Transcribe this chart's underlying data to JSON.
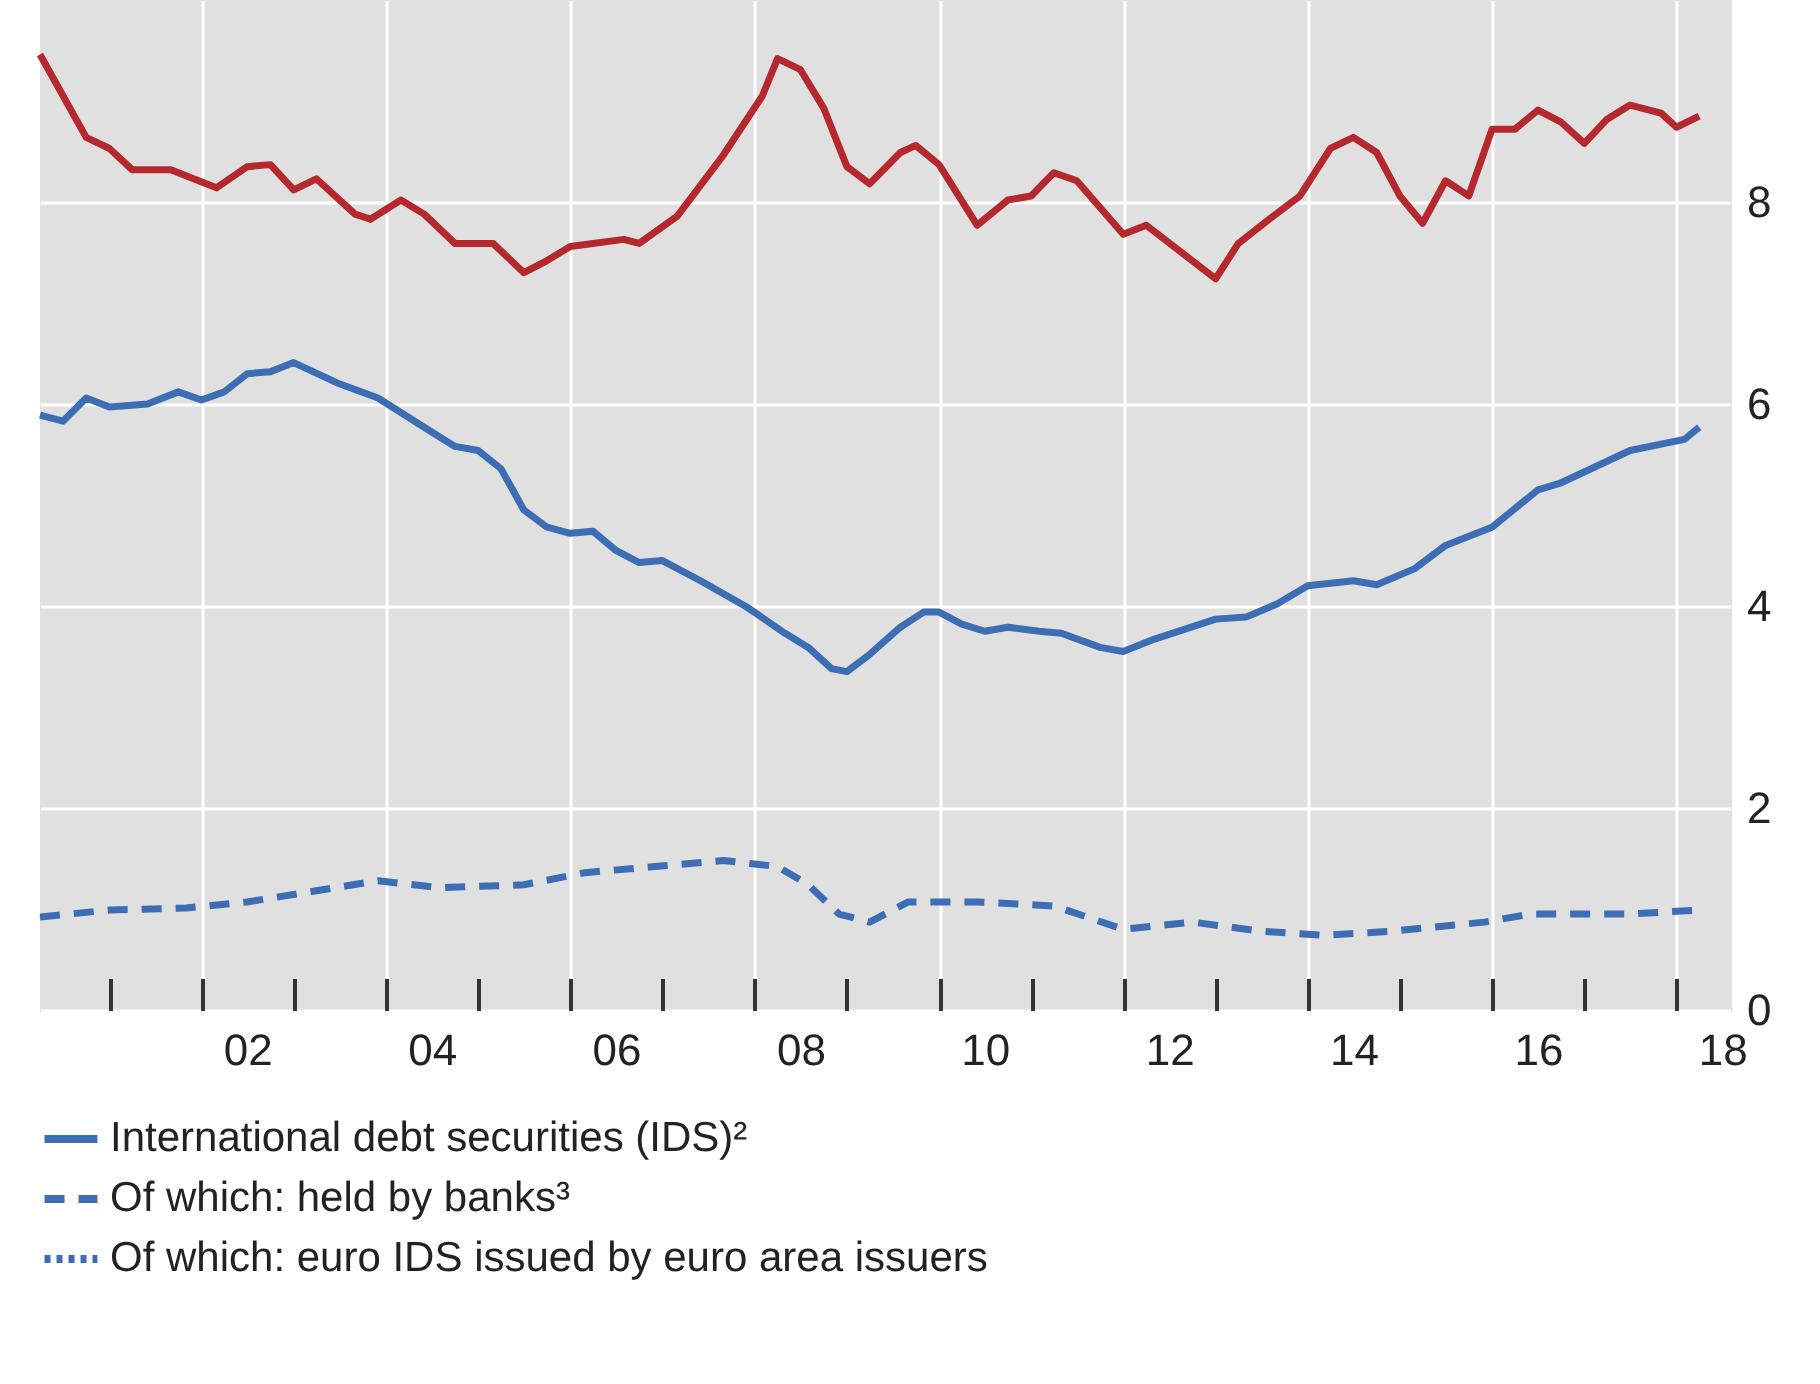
{
  "chart_data": {
    "type": "line",
    "xlim": [
      "2000-04",
      "2018-08"
    ],
    "xticks": [
      {
        "value": "2002-07",
        "label": "02"
      },
      {
        "value": "2004-07",
        "label": "04"
      },
      {
        "value": "2006-07",
        "label": "06"
      },
      {
        "value": "2008-07",
        "label": "08"
      },
      {
        "value": "2010-07",
        "label": "10"
      },
      {
        "value": "2012-07",
        "label": "12"
      },
      {
        "value": "2014-07",
        "label": "14"
      },
      {
        "value": "2016-07",
        "label": "16"
      },
      {
        "value": "2018-07",
        "label": "18"
      },
      {
        "value": "2001-01",
        "label": null
      },
      {
        "value": "2002-01",
        "label": null
      },
      {
        "value": "2003-01",
        "label": null
      },
      {
        "value": "2004-01",
        "label": null
      },
      {
        "value": "2005-01",
        "label": null
      },
      {
        "value": "2006-01",
        "label": null
      },
      {
        "value": "2007-01",
        "label": null
      },
      {
        "value": "2008-01",
        "label": null
      },
      {
        "value": "2009-01",
        "label": null
      },
      {
        "value": "2010-01",
        "label": null
      },
      {
        "value": "2011-01",
        "label": null
      },
      {
        "value": "2012-01",
        "label": null
      },
      {
        "value": "2013-01",
        "label": null
      },
      {
        "value": "2014-01",
        "label": null
      },
      {
        "value": "2015-01",
        "label": null
      },
      {
        "value": "2016-01",
        "label": null
      },
      {
        "value": "2017-01",
        "label": null
      },
      {
        "value": "2018-01",
        "label": null
      }
    ],
    "ylim": [
      0,
      10
    ],
    "yticks": [
      0,
      2,
      4,
      6,
      8
    ],
    "grid": true,
    "legend": "bottom left",
    "series": [
      {
        "color": "#b5282e",
        "line_style": "solid",
        "x": [
          "2000-04",
          "2000-10",
          "2001-01",
          "2001-04",
          "2001-09",
          "2002-03",
          "2002-07",
          "2002-10",
          "2003-01",
          "2003-04",
          "2003-09",
          "2003-11",
          "2004-03",
          "2004-06",
          "2004-10",
          "2005-03",
          "2005-07",
          "2005-10",
          "2006-01",
          "2006-08",
          "2006-10",
          "2007-03",
          "2007-09",
          "2008-02",
          "2008-04",
          "2008-07",
          "2008-10",
          "2009-01",
          "2009-04",
          "2009-08",
          "2009-10",
          "2010-01",
          "2010-06",
          "2010-10",
          "2011-01",
          "2011-04",
          "2011-07",
          "2012-01",
          "2012-04",
          "2013-01",
          "2013-04",
          "2013-08",
          "2013-12",
          "2014-04",
          "2014-07",
          "2014-10",
          "2015-01",
          "2015-04",
          "2015-07",
          "2015-10",
          "2016-01",
          "2016-04",
          "2016-07",
          "2016-10",
          "2017-01",
          "2017-04",
          "2017-07",
          "2017-11",
          "2018-01",
          "2018-04"
        ],
        "values": [
          9.46,
          8.64,
          8.53,
          8.32,
          8.32,
          8.14,
          8.35,
          8.37,
          8.12,
          8.23,
          7.88,
          7.83,
          8.02,
          7.88,
          7.59,
          7.59,
          7.3,
          7.42,
          7.56,
          7.63,
          7.59,
          7.86,
          8.47,
          9.05,
          9.42,
          9.31,
          8.93,
          8.35,
          8.18,
          8.49,
          8.56,
          8.37,
          7.77,
          8.02,
          8.06,
          8.29,
          8.21,
          7.68,
          7.77,
          7.24,
          7.59,
          7.83,
          8.06,
          8.53,
          8.64,
          8.49,
          8.06,
          7.79,
          8.21,
          8.06,
          8.72,
          8.72,
          8.91,
          8.79,
          8.58,
          8.82,
          8.96,
          8.88,
          8.74,
          8.85
        ]
      },
      {
        "name": "International debt securities (IDS)²",
        "color": "#3d6db5",
        "line_style": "solid",
        "x": [
          "2000-04",
          "2000-07",
          "2000-10",
          "2001-01",
          "2001-06",
          "2001-10",
          "2002-01",
          "2002-04",
          "2002-07",
          "2002-10",
          "2003-01",
          "2003-07",
          "2003-12",
          "2004-06",
          "2004-10",
          "2005-01",
          "2005-04",
          "2005-07",
          "2005-10",
          "2006-01",
          "2006-04",
          "2006-07",
          "2006-10",
          "2007-01",
          "2007-06",
          "2007-12",
          "2008-05",
          "2008-08",
          "2008-11",
          "2009-01",
          "2009-04",
          "2009-08",
          "2009-11",
          "2010-01",
          "2010-04",
          "2010-07",
          "2010-10",
          "2011-02",
          "2011-05",
          "2011-10",
          "2012-01",
          "2012-05",
          "2013-01",
          "2013-05",
          "2013-09",
          "2014-01",
          "2014-07",
          "2014-10",
          "2015-03",
          "2015-07",
          "2015-11",
          "2016-01",
          "2016-07",
          "2016-10",
          "2017-07",
          "2018-02",
          "2018-04"
        ],
        "values": [
          5.89,
          5.83,
          6.06,
          5.97,
          6.0,
          6.12,
          6.04,
          6.12,
          6.3,
          6.32,
          6.41,
          6.2,
          6.06,
          5.77,
          5.58,
          5.54,
          5.36,
          4.95,
          4.78,
          4.72,
          4.74,
          4.55,
          4.43,
          4.45,
          4.25,
          3.99,
          3.73,
          3.59,
          3.38,
          3.35,
          3.52,
          3.79,
          3.94,
          3.94,
          3.82,
          3.75,
          3.79,
          3.75,
          3.73,
          3.59,
          3.55,
          3.67,
          3.87,
          3.89,
          4.02,
          4.2,
          4.25,
          4.21,
          4.37,
          4.6,
          4.72,
          4.78,
          5.15,
          5.22,
          5.54,
          5.65,
          5.77
        ]
      },
      {
        "name": "Of which: held by banks³",
        "color": "#3d6db5",
        "line_style": "dashed",
        "x": [
          "2000-04",
          "2001-01",
          "2001-11",
          "2002-07",
          "2003-04",
          "2003-12",
          "2004-08",
          "2005-07",
          "2006-03",
          "2006-12",
          "2007-09",
          "2008-04",
          "2008-08",
          "2008-12",
          "2009-04",
          "2009-09",
          "2010-06",
          "2011-04",
          "2012-01",
          "2012-10",
          "2013-07",
          "2014-03",
          "2014-12",
          "2015-12",
          "2016-06",
          "2017-07",
          "2018-04"
        ],
        "values": [
          0.92,
          0.99,
          1.01,
          1.07,
          1.18,
          1.28,
          1.21,
          1.24,
          1.36,
          1.42,
          1.48,
          1.42,
          1.24,
          0.95,
          0.87,
          1.07,
          1.07,
          1.03,
          0.8,
          0.87,
          0.78,
          0.74,
          0.78,
          0.87,
          0.95,
          0.95,
          0.99
        ]
      },
      {
        "name": "Of which: euro IDS issued by euro area issuers",
        "color": "#3d6db5",
        "line_style": "dotted"
      }
    ]
  }
}
